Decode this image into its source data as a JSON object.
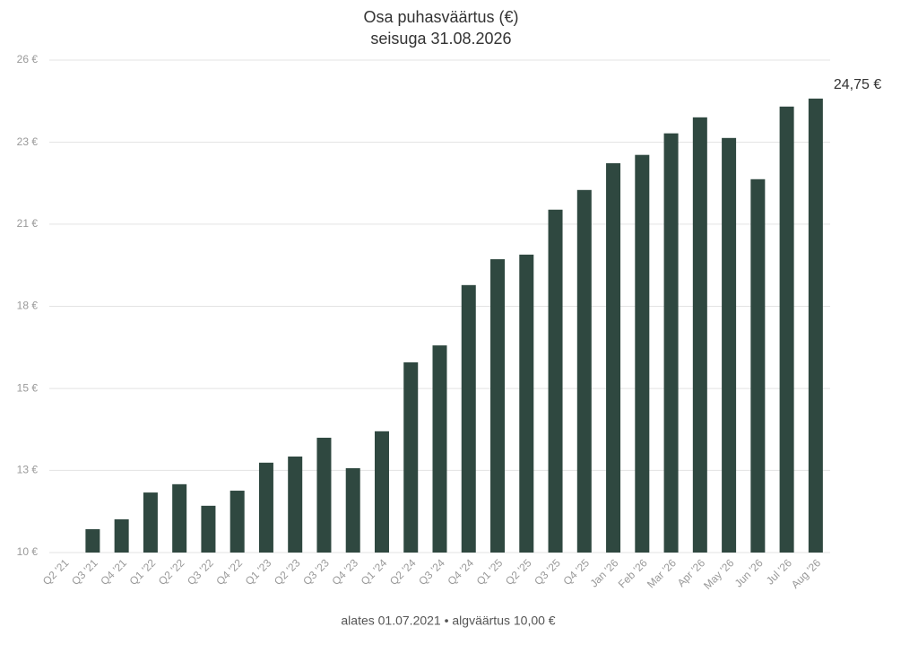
{
  "chart_data": {
    "type": "bar",
    "title": "Osa puhasväärtus (€)",
    "subtitle": "seisuga 31.08.2026",
    "footer": "alates 01.07.2021 • algväärtus 10,00 €",
    "annotation": "24,75 €",
    "categories": [
      "Q2 '21",
      "Q3 '21",
      "Q4 '21",
      "Q1 '22",
      "Q2 '22",
      "Q3 '22",
      "Q4 '22",
      "Q1 '23",
      "Q2 '23",
      "Q3 '23",
      "Q4 '23",
      "Q1 '24",
      "Q2 '24",
      "Q3 '24",
      "Q4 '24",
      "Q1 '25",
      "Q2 '25",
      "Q3 '25",
      "Q4 '25",
      "Jan '26",
      "Feb '26",
      "Mar '26",
      "Apr '26",
      "May '26",
      "Jun '26",
      "Jul '26",
      "Aug '26"
    ],
    "values": [
      10,
      10.76,
      11.08,
      11.95,
      12.22,
      11.52,
      12.01,
      12.92,
      13.12,
      13.73,
      12.74,
      13.94,
      16.18,
      16.73,
      18.69,
      19.53,
      19.68,
      21.14,
      21.78,
      22.65,
      22.92,
      23.62,
      24.14,
      23.47,
      22.13,
      24.49,
      24.75
    ],
    "color": "#2f4840",
    "ylim": [
      10,
      26
    ],
    "yticks": [
      {
        "value": 10,
        "label": "10 €"
      },
      {
        "value": 12.67,
        "label": "13 €"
      },
      {
        "value": 15.33,
        "label": "15 €"
      },
      {
        "value": 18,
        "label": "18 €"
      },
      {
        "value": 20.67,
        "label": "21 €"
      },
      {
        "value": 23.33,
        "label": "23 €"
      },
      {
        "value": 26,
        "label": "26 €"
      }
    ],
    "grid": true
  }
}
